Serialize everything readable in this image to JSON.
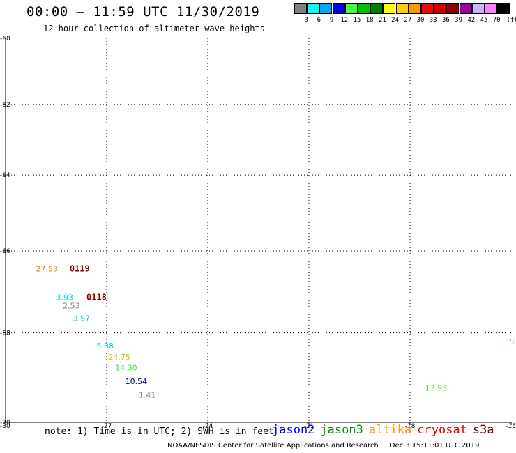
{
  "header": {
    "title": "00:00 – 11:59 UTC 11/30/2019",
    "subtitle": "12 hour collection of altimeter wave heights"
  },
  "colorbar": {
    "unit": "(ft)",
    "bins": [
      {
        "label": "3",
        "color": "#808080"
      },
      {
        "label": "6",
        "color": "#00ffff"
      },
      {
        "label": "9",
        "color": "#00a8ff"
      },
      {
        "label": "12",
        "color": "#0000ff"
      },
      {
        "label": "15",
        "color": "#40ff40"
      },
      {
        "label": "18",
        "color": "#00c000"
      },
      {
        "label": "21",
        "color": "#008000"
      },
      {
        "label": "24",
        "color": "#ffff00"
      },
      {
        "label": "27",
        "color": "#ffd000"
      },
      {
        "label": "30",
        "color": "#ff9900"
      },
      {
        "label": "33",
        "color": "#ff0000"
      },
      {
        "label": "36",
        "color": "#d00000"
      },
      {
        "label": "39",
        "color": "#900000"
      },
      {
        "label": "42",
        "color": "#a000a0"
      },
      {
        "label": "45",
        "color": "#d0b0ff"
      },
      {
        "label": "70",
        "color": "#ff80ff"
      },
      {
        "label": "",
        "color": "#000000"
      }
    ]
  },
  "map": {
    "lon_range": [
      -30,
      -15
    ],
    "lat_range": [
      -70,
      -60
    ],
    "lon_ticks": [
      "-30",
      "-27",
      "-24",
      "-21",
      "-18",
      "-15"
    ],
    "lat_ticks": [
      "-60",
      "-62",
      "-64",
      "-66",
      "-68",
      "-70"
    ]
  },
  "observations": [
    {
      "value": "27.53",
      "lon": -29.1,
      "lat": -66.45,
      "color": "#e08000"
    },
    {
      "value": "3.93",
      "lon": -28.5,
      "lat": -67.15,
      "color": "#00d0e0"
    },
    {
      "value": "2.53",
      "lon": -28.3,
      "lat": -67.35,
      "color": "#808080"
    },
    {
      "value": "3.97",
      "lon": -28.0,
      "lat": -67.65,
      "color": "#00d0e0"
    },
    {
      "value": "5.38",
      "lon": -27.3,
      "lat": -68.3,
      "color": "#00d0e0"
    },
    {
      "value": "24.75",
      "lon": -26.95,
      "lat": -68.55,
      "color": "#e0c000"
    },
    {
      "value": "14.30",
      "lon": -26.75,
      "lat": -68.8,
      "color": "#40e040"
    },
    {
      "value": "10.54",
      "lon": -26.45,
      "lat": -69.1,
      "color": "#000090"
    },
    {
      "value": "1.41",
      "lon": -26.05,
      "lat": -69.4,
      "color": "#808080"
    },
    {
      "value": "13.93",
      "lon": -17.55,
      "lat": -69.25,
      "color": "#40e040"
    },
    {
      "value": "5",
      "lon": -15.05,
      "lat": -68.2,
      "color": "#00d0e0"
    }
  ],
  "passes": [
    {
      "label": "0119",
      "lon": -28.1,
      "lat": -66.45,
      "color": "#800000"
    },
    {
      "label": "0118",
      "lon": -27.6,
      "lat": -67.15,
      "color": "#800000"
    }
  ],
  "note": "note: 1) Time is in UTC; 2) SWH is in feet",
  "satellites": [
    {
      "name": "jason2",
      "color": "#0000ff"
    },
    {
      "name": "jason3",
      "color": "#009000"
    },
    {
      "name": "altika",
      "color": "#ff9900"
    },
    {
      "name": "cryosat",
      "color": "#e00000"
    },
    {
      "name": "s3a",
      "color": "#800000"
    }
  ],
  "footer": {
    "credit": "NOAA/NESDIS Center for Satellite Applications and Research",
    "timestamp": "Dec  3 15:11:01 UTC 2019"
  }
}
